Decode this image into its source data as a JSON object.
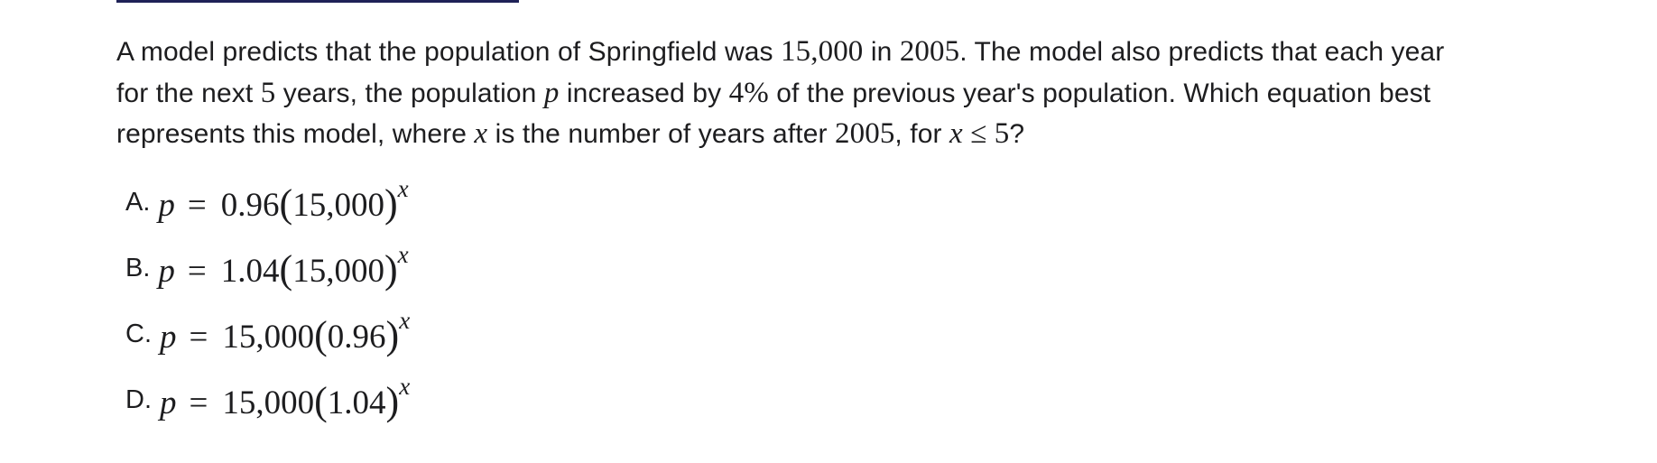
{
  "question": {
    "l1_a": "A model predicts that the population of Springfield was ",
    "l1_b": "15,000",
    "l1_c": " in ",
    "l1_d": "2005",
    "l1_e": ". The model also predicts that each year",
    "l2_a": "for the next ",
    "l2_b": "5",
    "l2_c": " years, the population ",
    "l2_d": "p",
    "l2_e": " increased by ",
    "l2_f": "4%",
    "l2_g": " of the previous year's population. Which equation best",
    "l3_a": "represents this model, where ",
    "l3_b": "x",
    "l3_c": " is the number of years after ",
    "l3_d": "2005",
    "l3_e": ", for ",
    "l3_f": "x",
    "l3_g": " ≤ ",
    "l3_h": "5",
    "l3_i": "?"
  },
  "choices": [
    {
      "letter": "A.",
      "var": "p",
      "eq": "=",
      "coef": "0.96",
      "open": "(",
      "inner": "15,000",
      "close": ")",
      "exp": "x"
    },
    {
      "letter": "B.",
      "var": "p",
      "eq": "=",
      "coef": "1.04",
      "open": "(",
      "inner": "15,000",
      "close": ")",
      "exp": "x"
    },
    {
      "letter": "C.",
      "var": "p",
      "eq": "=",
      "coef": "15,000",
      "open": "(",
      "inner": "0.96",
      "close": ")",
      "exp": "x"
    },
    {
      "letter": "D.",
      "var": "p",
      "eq": "=",
      "coef": "15,000",
      "open": "(",
      "inner": "1.04",
      "close": ")",
      "exp": "x"
    }
  ],
  "colors": {
    "text": "#1d1d1f",
    "top_rule": "#1f2257",
    "background": "#ffffff"
  }
}
